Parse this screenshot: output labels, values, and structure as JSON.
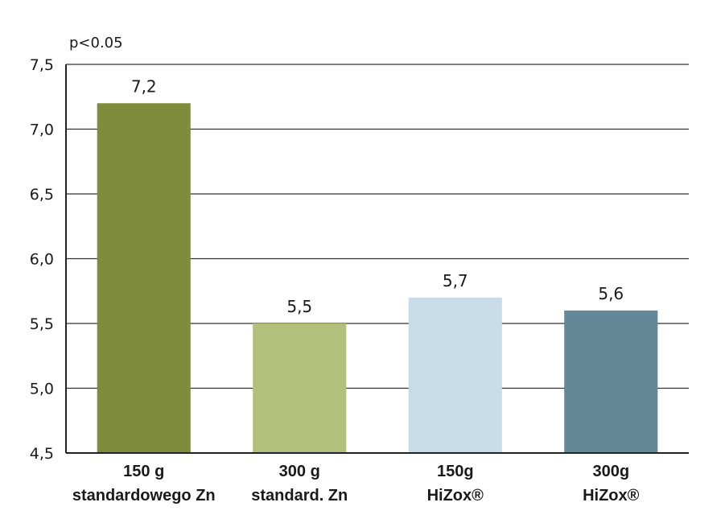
{
  "chart_data": {
    "type": "bar",
    "annotation": "p<0.05",
    "categories": [
      [
        "150 g",
        "standardowego Zn"
      ],
      [
        "300 g",
        "standard. Zn"
      ],
      [
        "150g",
        "HiZox®"
      ],
      [
        "300g",
        "HiZox®"
      ]
    ],
    "values": [
      7.2,
      5.5,
      5.7,
      5.6
    ],
    "value_labels": [
      "7,2",
      "5,5",
      "5,7",
      "5,6"
    ],
    "colors": [
      "#7f8c3c",
      "#b1c07a",
      "#c7dce7",
      "#658898"
    ],
    "ylim": [
      4.5,
      7.5
    ],
    "yticks": [
      4.5,
      5.0,
      5.5,
      6.0,
      6.5,
      7.0,
      7.5
    ],
    "ytick_labels": [
      "4,5",
      "5,0",
      "5,5",
      "6,0",
      "6,5",
      "7,0",
      "7,5"
    ],
    "grid": true,
    "title": "",
    "xlabel": "",
    "ylabel": ""
  }
}
